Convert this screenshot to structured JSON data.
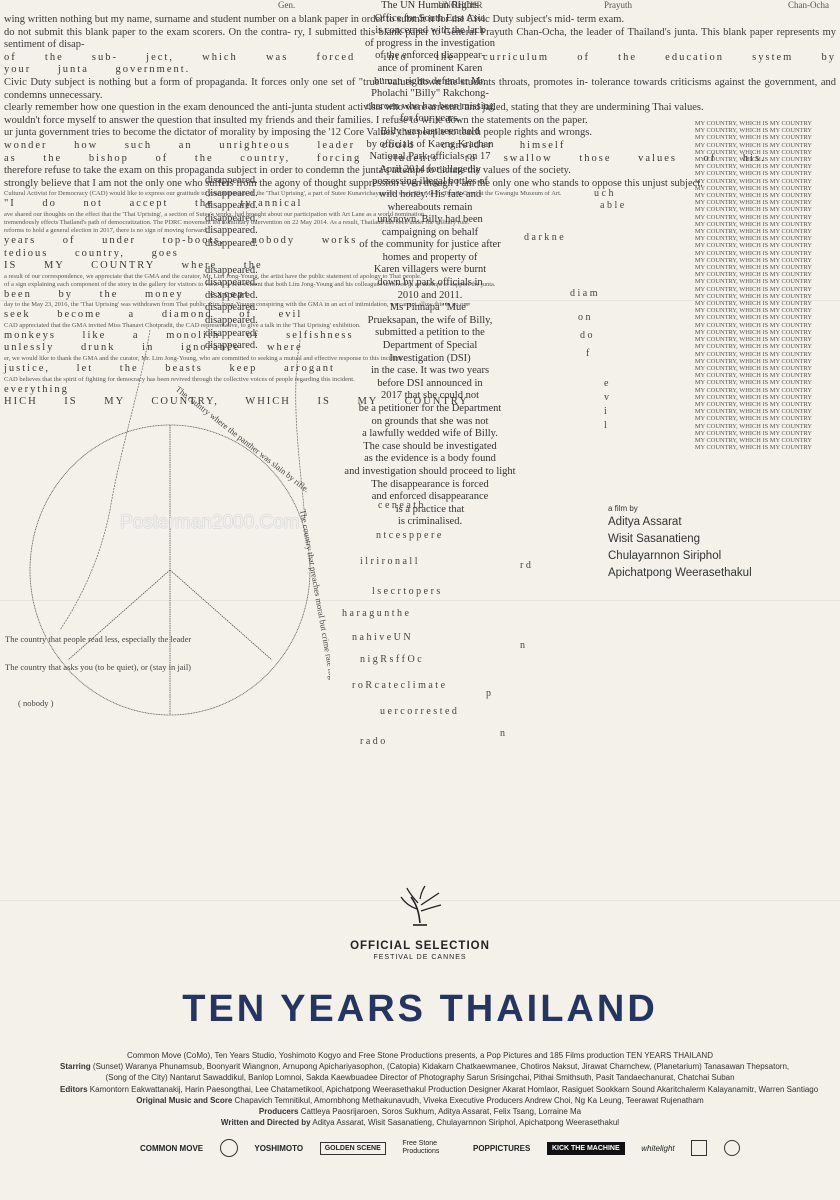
{
  "top_names": [
    "Gen.",
    "UNOHCHR",
    "Prayuth",
    "Chan-Ocha"
  ],
  "essay_lines": [
    "wing written nothing but my name, surname and student number on a blank paper in order to submit it for the Civic Duty subject's mid- term exam.",
    "do not submit this blank paper to the exam scorers. On the contra- ry, I submitted this blank paper to General Prayuth Chan-Ocha, the leader of Thailand's junta. This blank paper represents my sentiment of disap-",
    "of the sub- ject, which was forced into the curriculum of the education system by your junta government.",
    "Civic Duty subject is nothing but a form of propaganda. It forces only one set of \"true\" values down the students throats, promotes in- tolerance towards criticisms against the government, and condemns unnecessary.",
    "clearly remember how one question in the exam denounced the anti-junta student activists who were arrested and jailed, stating that they are undermining Thai values.",
    "wouldn't force myself to answer the question that insulted my friends and their families. I refuse to write down the statements on the paper.",
    "ur junta government tries to become the dictator of morality by imposing the '12 Core Values' that people to teach people rights and wrongs.",
    "wonder how such an unrighteous leader could consider himself",
    "as the bishop of the country, forcing students to swallow those values of his.",
    "therefore refuse to take the exam on this propaganda subject in order to condemn the junta's attempt to dictate the values of the society.",
    "strongly believe that I am not the only one who suffers from the agony of thought suppression even though I am the only one who stands to oppose this unjust subject."
  ],
  "essay_small": [
    "Cultural Activist for Democracy (CAD) would like to express our gratitude to your responses on the 'Thai Uprising', a part of Sutee Kunavichayanont's work 'Fly Me To Turn It Over' at the Gwangju Museum of Art.",
    "ave shared our thoughts on the effect that the 'Thai Uprising', a section of Sutee's works, had brought about our participation with Art Lane as a world nomination.",
    "tremendously effects Thailand's path of democratization. The PDRC movement led to military intervention on 22 May 2014. As a result, Thailand has been under the military rule.",
    "reforms to hold a general election in 2017, there is no sign of moving forward.",
    "a result of our correspondence, we appreciate that the GMA and the curator, Mr. Lim Jong-Young, the artist have the public statement of apology to Thai people.",
    "of a sign explaining each component of the story in the gallery for visitors to view. It is self-evident that both Lim Jong-Young and his colleagues involved in an attempt to support the junta.",
    "day to the May 23, 2016, the 'Thai Uprising' was withdrawn from Thai public. Lim Jong-Young, conspiring with the GMA in an act of intimidation, we cannot allow this to go on.",
    "CAD appreciated that the GMA invited Miss Thanavi Chotpradit, the CAD representative, to give a talk in the 'Thai Uprising' exhibition.",
    "er, we would like to thank the GMA and the curator, Mr. Lim Jong-Young, who are committed to seeking a mutual and effective response to this incident.",
    "CAD believes that the spirit of fighting for democracy has been revived through the collective voices of people regarding this incident."
  ],
  "poem_lines": [
    "\"I do not accept the tyrannical",
    "years of under top-boots, nobody works",
    "tedious country, goes",
    "IS MY COUNTRY where the",
    "been by the money except",
    "seek become a diamond of evil",
    "monkeys like a monolith of selfishness",
    "unlessly drunk in ignorance where",
    "justice, let the beasts keep arrogant",
    "everything",
    "HICH IS MY COUNTRY, WHICH IS MY COUNTRY"
  ],
  "disappeared_word": "disappeared.",
  "center_col": [
    "The UN Human Rights",
    "Office for South East Asia",
    "is concerned with the lack",
    "of progress in the investigation",
    "of the enforced disappear-",
    "ance of prominent Karen",
    "human rights defender Mr.",
    "Pholachi \"Billy\" Rakchong-",
    "charoen who has been missing",
    "for four years.",
    "Billy was last seen held",
    "by officials of Kaeng Krachan",
    "National Park officials on 17",
    "April 2014 for allegedly",
    "possessing illegal bottles of",
    "wild honey. His fate and",
    "whereabouts remain",
    "unknown. Billy had been",
    "campaigning on behalf",
    "of the community for justice after",
    "homes and property of",
    "Karen villagers were burnt",
    "down by park officials in",
    "2010 and 2011.",
    "Ms Pinnapa \"Mue\"",
    "Prueksapan, the wife of Billy,",
    "submitted a petition to the",
    "Department of Special",
    "Investigation (DSI)",
    "in the case. It was two years",
    "before DSI announced in",
    "2017 that she could not",
    "be a petitioner for the Department",
    "on grounds that she was not",
    "a lawfully wedded wife of Billy.",
    "The case should be investigated",
    "as the evidence is a body found",
    "and investigation should proceed to light",
    "The disappearance is forced",
    "and enforced disappearance",
    "is a practice that",
    "is criminalised."
  ],
  "my_country_line": "MY COUNTRY, WHICH IS MY COUNTRY",
  "my_country_repeat": 46,
  "thai_uprising_small": "Thai Uprising",
  "film_by": {
    "label": "a film by",
    "directors": [
      "Aditya Assarat",
      "Wisit Sasanatieng",
      "Chulayarnnon Siriphol",
      "Apichatpong Weerasethakul"
    ]
  },
  "watermark": "Posterman2000.Com",
  "circle_labels": [
    "The country where the panther was slain by rifle.",
    "The country that preaches moral but crime rate highest than Europe",
    "The country that people read less, especially the leader",
    "The country that asks you (to be quiet), or (stay in jail)",
    "( nobody )"
  ],
  "official_selection": "OFFICIAL SELECTION",
  "festival": "FESTIVAL DE CANNES",
  "title": "TEN YEARS THAILAND",
  "credits": [
    {
      "label": "",
      "text": "Common Move (CoMo), Ten Years Studio, Yoshimoto Kogyo and Free Stone Productions presents, a Pop Pictures and 185 Films production TEN YEARS THAILAND"
    },
    {
      "label": "Starring",
      "text": "(Sunset) Waranya Phunamsub, Boonyarit Wiangnon, Arnupong Apichariyasophon, (Catopia) Kidakarn Chatkaewmanee, Chotiros Naksut, Jirawat Charnchew, (Planetarium) Tanasawan Thepsatorn,"
    },
    {
      "label": "",
      "text": "(Song of the City) Nantarut Sawaddikul, Banlop Lomnoi, Sakda Kaewbuadee Director of Photography Sarun Srisingchai, Pithai Smithsuth, Pasit Tandaechanurat, Chatchai Suban"
    },
    {
      "label": "Editors",
      "text": "Kamontorn Eakwattanakij, Harin Paesongthai, Lee Chatametikool, Apichatpong Weerasethakul Production Designer Akarat Homlaor, Rasiguet Sookkarn Sound Akaritchalerm Kalayanamitr, Warren Santiago"
    },
    {
      "label": "Original Music and Score",
      "text": "Chapavich Temnitikul, Amornbhong Methakunavudh, Viveka Executive Producers Andrew Choi, Ng Ka Leung, Teerawat Rujenatham"
    },
    {
      "label": "Producers",
      "text": "Cattleya Paosrijaroen, Soros Sukhum, Aditya Assarat, Felix Tsang, Lorraine Ma"
    },
    {
      "label": "Written and Directed by",
      "text": "Aditya Assarat, Wisit Sasanatieng, Chulayarnnon Siriphol, Apichatpong Weerasethakul"
    }
  ],
  "logos": [
    "COMMON MOVE",
    "YOSHIMOTO",
    "GOLDEN SCENE",
    "Free Stone Productions",
    "POPPICTURES",
    "KICK THE MACHINE",
    "whitelight"
  ],
  "colors": {
    "background": "#f3f1ea",
    "title": "#26355f",
    "text": "#2c2c2c"
  }
}
